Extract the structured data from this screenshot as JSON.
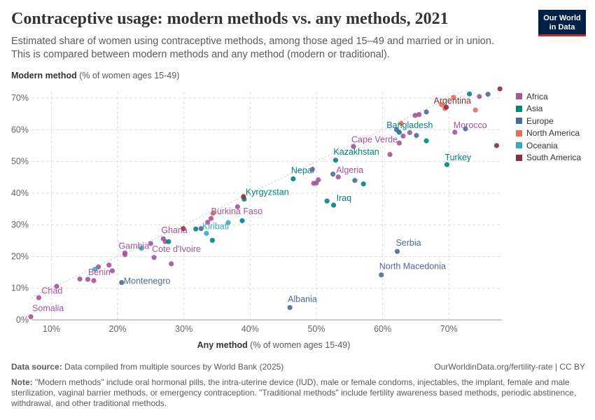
{
  "header": {
    "title": "Contraceptive usage: modern methods vs. any methods, 2021",
    "subtitle": "Estimated share of women using contraceptive methods, among those aged 15–49 and married or in union. This is compared between modern methods and any method (modern or traditional).",
    "logo_line1": "Our World",
    "logo_line2": "in Data"
  },
  "footer": {
    "source_label": "Data source:",
    "source_text": "Data compiled from multiple sources by World Bank (2025)",
    "link_text": "OurWorldinData.org/fertility-rate | CC BY",
    "note_label": "Note:",
    "note_text": "\"Modern methods\" include oral hormonal pills, the intra-uterine device (IUD), male or female condoms, injectables, the implant, female and male sterilization, vaginal barrier methods, or emergency contraception. \"Traditional methods\" include fertility awareness based methods, periodic abstinence, withdrawal, and other traditional methods."
  },
  "chart_data": {
    "type": "scatter",
    "title": "Contraceptive usage: modern methods vs. any methods, 2021",
    "xlabel_bold": "Any method",
    "xlabel_rest": " (% of women ages 15-49)",
    "ylabel_bold": "Modern method",
    "ylabel_rest": " (% of women ages 15-49)",
    "xlim": [
      7,
      78
    ],
    "ylim": [
      0,
      72
    ],
    "x_ticks": [
      10,
      20,
      30,
      40,
      50,
      60,
      70
    ],
    "x_tick_labels": [
      "10%",
      "20%",
      "30%",
      "40%",
      "50%",
      "60%",
      "70%"
    ],
    "y_ticks": [
      0,
      10,
      20,
      30,
      40,
      50,
      60,
      70
    ],
    "y_tick_labels": [
      "0%",
      "10%",
      "20%",
      "30%",
      "40%",
      "50%",
      "60%",
      "70%"
    ],
    "grid": true,
    "legend_position": "right",
    "colors": {
      "Africa": "#a2559c",
      "Asia": "#00847e",
      "Europe": "#4c6a9c",
      "North America": "#e56e5a",
      "Oceania": "#38aaba",
      "South America": "#883039"
    },
    "legend": [
      "Africa",
      "Asia",
      "Europe",
      "North America",
      "Oceania",
      "South America"
    ],
    "series": [
      {
        "name": "Africa",
        "points": [
          {
            "x": 6.9,
            "y": 1.0,
            "label": "Somalia"
          },
          {
            "x": 8.1,
            "y": 7.0,
            "label": "Chad"
          },
          {
            "x": 10.8,
            "y": 10.6
          },
          {
            "x": 14.3,
            "y": 12.9
          },
          {
            "x": 15.5,
            "y": 12.8
          },
          {
            "x": 16.4,
            "y": 12.4,
            "label": "Benin"
          },
          {
            "x": 17.1,
            "y": 16.7
          },
          {
            "x": 18.7,
            "y": 17.3
          },
          {
            "x": 19.2,
            "y": 15.5
          },
          {
            "x": 21.1,
            "y": 20.6,
            "label": "Gambia"
          },
          {
            "x": 21.1,
            "y": 21.1
          },
          {
            "x": 25.0,
            "y": 24.1
          },
          {
            "x": 25.5,
            "y": 19.7,
            "label": "Cote d'Ivoire"
          },
          {
            "x": 26.9,
            "y": 25.6,
            "label": "Ghana"
          },
          {
            "x": 27.2,
            "y": 24.7
          },
          {
            "x": 28.1,
            "y": 17.7
          },
          {
            "x": 33.6,
            "y": 30.8
          },
          {
            "x": 34.1,
            "y": 32.0,
            "label": "Burkina Faso"
          },
          {
            "x": 38.1,
            "y": 35.7
          },
          {
            "x": 49.4,
            "y": 47.5
          },
          {
            "x": 49.6,
            "y": 43.1
          },
          {
            "x": 50.0,
            "y": 43.2
          },
          {
            "x": 50.3,
            "y": 44.2
          },
          {
            "x": 53.3,
            "y": 45.1,
            "label": "Algeria"
          },
          {
            "x": 55.6,
            "y": 54.7,
            "label": "Cape Verde"
          },
          {
            "x": 61.1,
            "y": 52.2
          },
          {
            "x": 62.5,
            "y": 55.8
          },
          {
            "x": 63.1,
            "y": 58.0
          },
          {
            "x": 64.1,
            "y": 59.1
          },
          {
            "x": 64.9,
            "y": 64.5
          },
          {
            "x": 65.5,
            "y": 64.8
          },
          {
            "x": 70.9,
            "y": 59.2,
            "label": "Morocco"
          },
          {
            "x": 74.6,
            "y": 70.5
          }
        ]
      },
      {
        "name": "Asia",
        "points": [
          {
            "x": 27.7,
            "y": 24.7
          },
          {
            "x": 31.8,
            "y": 28.7
          },
          {
            "x": 34.3,
            "y": 25.1
          },
          {
            "x": 38.8,
            "y": 31.3
          },
          {
            "x": 39.1,
            "y": 38.1,
            "label": "Kyrgyzstan"
          },
          {
            "x": 46.5,
            "y": 44.5,
            "label": "Nepal"
          },
          {
            "x": 51.6,
            "y": 37.5
          },
          {
            "x": 52.6,
            "y": 36.2,
            "label": "Iraq"
          },
          {
            "x": 52.9,
            "y": 50.4,
            "label": "Kazakhstan"
          },
          {
            "x": 57.1,
            "y": 42.9
          },
          {
            "x": 62.5,
            "y": 59.2,
            "label": "Bangladesh"
          },
          {
            "x": 66.6,
            "y": 56.5
          },
          {
            "x": 69.7,
            "y": 49.0,
            "label": "Turkey"
          },
          {
            "x": 73.1,
            "y": 71.3
          }
        ]
      },
      {
        "name": "Europe",
        "points": [
          {
            "x": 20.6,
            "y": 11.8,
            "label": "Montenegro"
          },
          {
            "x": 32.6,
            "y": 28.8
          },
          {
            "x": 46.0,
            "y": 3.9,
            "label": "Albania"
          },
          {
            "x": 52.5,
            "y": 46.0
          },
          {
            "x": 55.8,
            "y": 44.0
          },
          {
            "x": 59.8,
            "y": 14.2,
            "label": "North Macedonia"
          },
          {
            "x": 62.2,
            "y": 21.6,
            "label": "Serbia"
          },
          {
            "x": 62.1,
            "y": 60.0
          },
          {
            "x": 65.1,
            "y": 58.2
          },
          {
            "x": 66.6,
            "y": 65.6
          },
          {
            "x": 72.5,
            "y": 60.3
          },
          {
            "x": 75.9,
            "y": 71.2
          }
        ]
      },
      {
        "name": "North America",
        "points": [
          {
            "x": 34.4,
            "y": 33.6
          },
          {
            "x": 62.8,
            "y": 62.0
          },
          {
            "x": 68.9,
            "y": 67.9
          },
          {
            "x": 69.4,
            "y": 66.7
          },
          {
            "x": 70.7,
            "y": 70.2
          },
          {
            "x": 74.0,
            "y": 66.2
          }
        ]
      },
      {
        "name": "Oceania",
        "points": [
          {
            "x": 16.6,
            "y": 16.0
          },
          {
            "x": 23.6,
            "y": 22.6
          },
          {
            "x": 33.4,
            "y": 27.3,
            "label": "Kiribati"
          },
          {
            "x": 36.7,
            "y": 30.7
          }
        ]
      },
      {
        "name": "South America",
        "points": [
          {
            "x": 29.9,
            "y": 28.8
          },
          {
            "x": 39.0,
            "y": 38.9
          },
          {
            "x": 69.6,
            "y": 67.1,
            "label": "Argentina"
          },
          {
            "x": 77.2,
            "y": 55.0
          },
          {
            "x": 77.7,
            "y": 72.9
          }
        ]
      }
    ]
  }
}
